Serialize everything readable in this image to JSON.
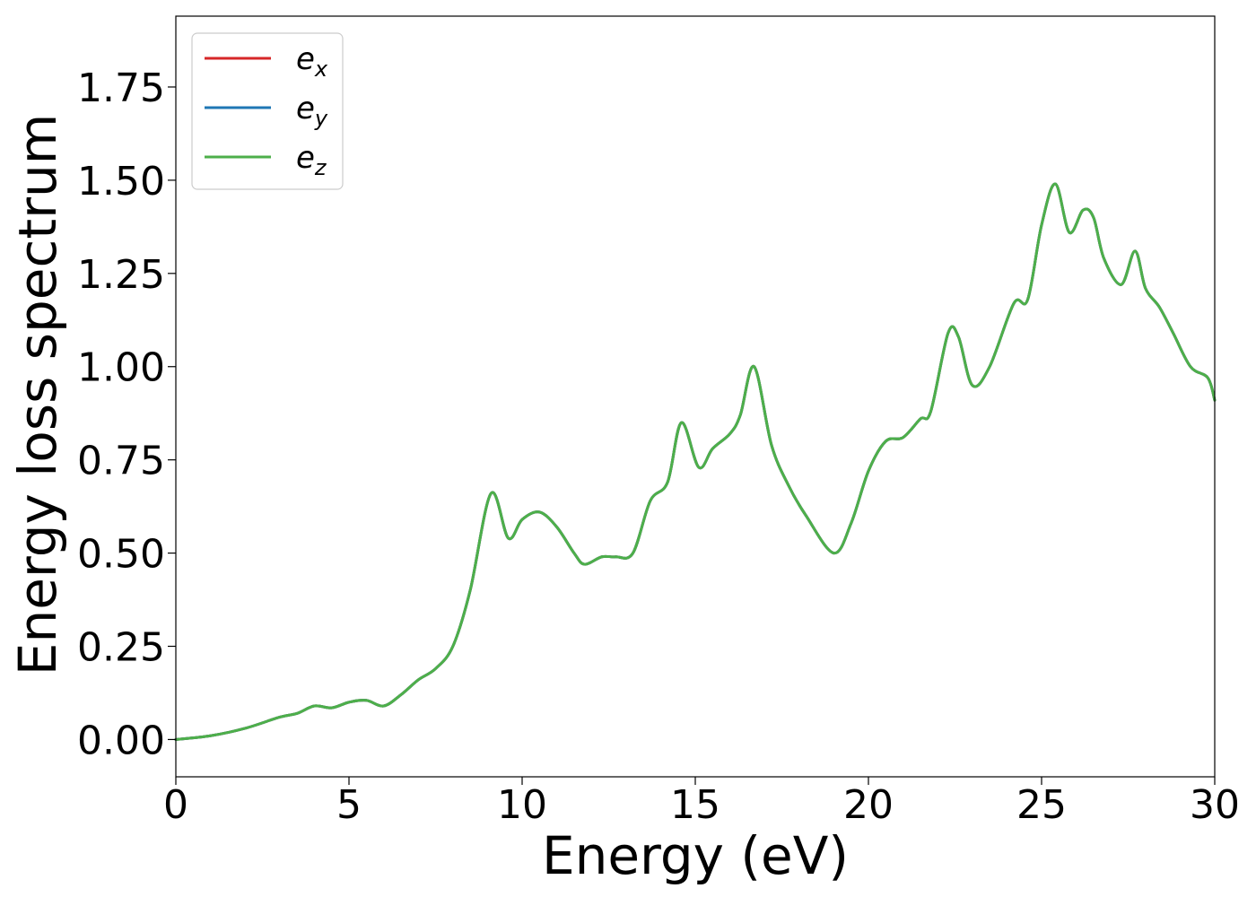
{
  "chart_data": {
    "type": "line",
    "xlabel": "Energy (eV)",
    "ylabel": "Energy loss spectrum",
    "xlim": [
      0,
      30
    ],
    "ylim": [
      -0.1,
      1.94
    ],
    "xticks": [
      0,
      5,
      10,
      15,
      20,
      25,
      30
    ],
    "yticks": [
      0.0,
      0.25,
      0.5,
      0.75,
      1.0,
      1.25,
      1.5,
      1.75
    ],
    "grid": false,
    "legend": {
      "placement": "top-left",
      "entries": [
        {
          "base": "e",
          "sub": "x",
          "color": "#d62728"
        },
        {
          "base": "e",
          "sub": "y",
          "color": "#1f77b4"
        },
        {
          "base": "e",
          "sub": "z",
          "color": "#4daf4a"
        }
      ]
    },
    "x": [
      0,
      1,
      2,
      3,
      3.5,
      4,
      4.5,
      5,
      5.5,
      6,
      6.5,
      7,
      7.5,
      8,
      8.5,
      9.1,
      9.6,
      10,
      10.5,
      11,
      11.5,
      11.8,
      12.3,
      12.7,
      13.2,
      13.7,
      14.2,
      14.6,
      15.1,
      15.5,
      16,
      16.3,
      16.7,
      17.2,
      17.7,
      18.2,
      19,
      19.5,
      20,
      20.5,
      21,
      21.5,
      21.8,
      22.3,
      22.6,
      23,
      23.5,
      24.2,
      24.6,
      25,
      25.4,
      25.8,
      26.2,
      26.5,
      26.8,
      27.3,
      27.7,
      28,
      28.4,
      28.8,
      29.3,
      29.8,
      30
    ],
    "series": [
      {
        "name": "e_x",
        "color": "#d62728",
        "values": [
          0.0,
          0.01,
          0.03,
          0.06,
          0.07,
          0.09,
          0.085,
          0.1,
          0.105,
          0.09,
          0.12,
          0.16,
          0.19,
          0.25,
          0.4,
          0.66,
          0.54,
          0.59,
          0.61,
          0.57,
          0.5,
          0.47,
          0.49,
          0.49,
          0.5,
          0.64,
          0.69,
          0.85,
          0.73,
          0.78,
          0.82,
          0.87,
          1.0,
          0.79,
          0.68,
          0.6,
          0.5,
          0.58,
          0.72,
          0.8,
          0.81,
          0.86,
          0.88,
          1.09,
          1.08,
          0.95,
          1.0,
          1.17,
          1.18,
          1.38,
          1.49,
          1.36,
          1.42,
          1.4,
          1.29,
          1.22,
          1.31,
          1.21,
          1.16,
          1.09,
          1.0,
          0.97,
          0.91
        ]
      },
      {
        "name": "e_y",
        "color": "#1f77b4",
        "values": [
          0.0,
          0.01,
          0.03,
          0.06,
          0.07,
          0.09,
          0.085,
          0.1,
          0.105,
          0.09,
          0.12,
          0.16,
          0.19,
          0.25,
          0.4,
          0.66,
          0.54,
          0.59,
          0.61,
          0.57,
          0.5,
          0.47,
          0.49,
          0.49,
          0.5,
          0.64,
          0.69,
          0.85,
          0.73,
          0.78,
          0.82,
          0.87,
          1.0,
          0.79,
          0.68,
          0.6,
          0.5,
          0.58,
          0.72,
          0.8,
          0.81,
          0.86,
          0.88,
          1.09,
          1.08,
          0.95,
          1.0,
          1.17,
          1.18,
          1.38,
          1.49,
          1.36,
          1.42,
          1.4,
          1.29,
          1.22,
          1.31,
          1.21,
          1.16,
          1.09,
          1.0,
          0.97,
          0.91
        ]
      },
      {
        "name": "e_z",
        "color": "#4daf4a",
        "values": [
          0.0,
          0.01,
          0.03,
          0.06,
          0.07,
          0.09,
          0.085,
          0.1,
          0.105,
          0.09,
          0.12,
          0.16,
          0.19,
          0.25,
          0.4,
          0.66,
          0.54,
          0.59,
          0.61,
          0.57,
          0.5,
          0.47,
          0.49,
          0.49,
          0.5,
          0.64,
          0.69,
          0.85,
          0.73,
          0.78,
          0.82,
          0.87,
          1.0,
          0.79,
          0.68,
          0.6,
          0.5,
          0.58,
          0.72,
          0.8,
          0.81,
          0.86,
          0.88,
          1.09,
          1.08,
          0.95,
          1.0,
          1.17,
          1.18,
          1.38,
          1.49,
          1.36,
          1.42,
          1.4,
          1.29,
          1.22,
          1.31,
          1.21,
          1.16,
          1.09,
          1.0,
          0.97,
          0.91
        ]
      }
    ]
  }
}
